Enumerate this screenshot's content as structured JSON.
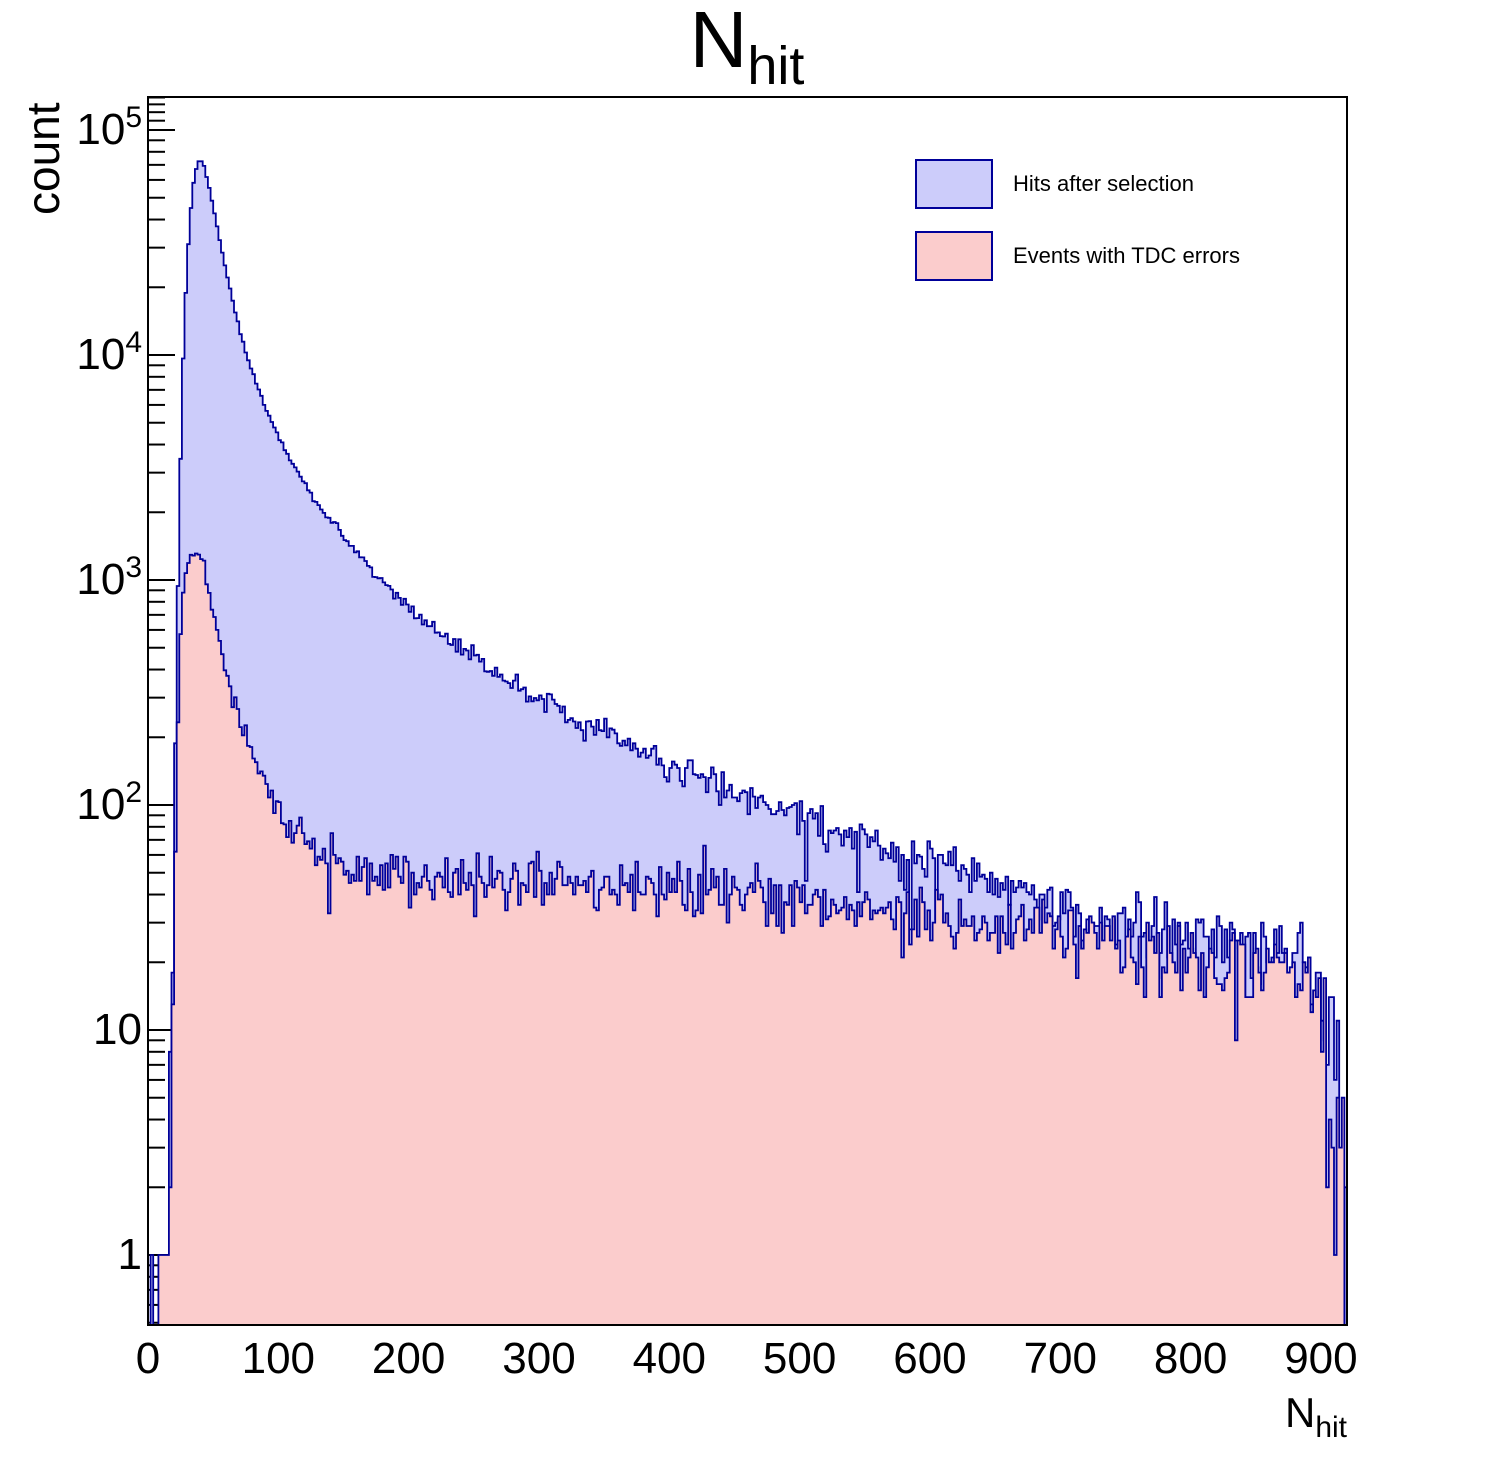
{
  "title": {
    "main": "N",
    "sub": "hit"
  },
  "axes": {
    "x": {
      "label_main": "N",
      "label_sub": "hit",
      "min": 0,
      "max": 920,
      "tick_values": [
        0,
        100,
        200,
        300,
        400,
        500,
        600,
        700,
        800,
        900
      ],
      "tick_labels": [
        "0",
        "100",
        "200",
        "300",
        "400",
        "500",
        "600",
        "700",
        "800",
        "900"
      ],
      "minor_step": 20
    },
    "y": {
      "label": "count",
      "scale": "log",
      "min": 0.5,
      "max": 140000,
      "ticks": [
        {
          "value": 100000,
          "base": "10",
          "exp": "5"
        },
        {
          "value": 10000,
          "base": "10",
          "exp": "4"
        },
        {
          "value": 1000,
          "base": "10",
          "exp": "3"
        },
        {
          "value": 100,
          "base": "10",
          "exp": "2"
        },
        {
          "value": 10,
          "base": "10",
          "exp": ""
        },
        {
          "value": 1,
          "base": "1",
          "exp": ""
        }
      ]
    }
  },
  "legend": {
    "position": "top-right",
    "items": [
      {
        "label": "Hits after selection",
        "fill": "#ccccfa",
        "line": "#000099"
      },
      {
        "label": "Events with TDC errors",
        "fill": "#fbcccc",
        "line": "#000099"
      }
    ]
  },
  "colors": {
    "background": "#ffffff",
    "frame": "#000000",
    "hist_line": "#000099",
    "blue_fill": "#ccccfa",
    "pink_fill": "#fbcccc"
  },
  "chart_data": {
    "type": "bar",
    "subtype": "step-histogram-log-y",
    "title": "N_hit",
    "xlabel": "N_hit",
    "ylabel": "count",
    "xlim": [
      0,
      920
    ],
    "ylim": [
      0.5,
      140000
    ],
    "bin_width": 2,
    "grid": false,
    "legend_position": "top-right",
    "noise_seed": 20240917,
    "series": [
      {
        "name": "Hits after selection",
        "peak": {
          "x": 40,
          "count": 73000
        },
        "anchors": [
          [
            14,
            0.8
          ],
          [
            15.5,
            2
          ],
          [
            17,
            6
          ],
          [
            19,
            30
          ],
          [
            21,
            180
          ],
          [
            23,
            900
          ],
          [
            25,
            3500
          ],
          [
            27,
            9500
          ],
          [
            29,
            19000
          ],
          [
            31,
            31000
          ],
          [
            33,
            45000
          ],
          [
            35,
            58000
          ],
          [
            37,
            67000
          ],
          [
            39,
            72500
          ],
          [
            41,
            73000
          ],
          [
            43,
            69000
          ],
          [
            45,
            62000
          ],
          [
            48,
            52000
          ],
          [
            51,
            42500
          ],
          [
            55,
            32500
          ],
          [
            60,
            23500
          ],
          [
            65,
            17500
          ],
          [
            70,
            13200
          ],
          [
            76,
            9900
          ],
          [
            82,
            7800
          ],
          [
            88,
            6300
          ],
          [
            95,
            5000
          ],
          [
            102,
            4100
          ],
          [
            110,
            3350
          ],
          [
            120,
            2700
          ],
          [
            130,
            2200
          ],
          [
            140,
            1850
          ],
          [
            152,
            1500
          ],
          [
            164,
            1250
          ],
          [
            176,
            1050
          ],
          [
            190,
            870
          ],
          [
            205,
            720
          ],
          [
            220,
            610
          ],
          [
            235,
            520
          ],
          [
            250,
            455
          ],
          [
            265,
            400
          ],
          [
            280,
            352
          ],
          [
            300,
            300
          ],
          [
            320,
            258
          ],
          [
            340,
            223
          ],
          [
            360,
            194
          ],
          [
            380,
            170
          ],
          [
            400,
            150
          ],
          [
            425,
            131
          ],
          [
            450,
            115
          ],
          [
            475,
            101
          ],
          [
            500,
            90
          ],
          [
            525,
            80
          ],
          [
            550,
            71
          ],
          [
            575,
            63
          ],
          [
            600,
            56
          ],
          [
            625,
            50
          ],
          [
            650,
            45
          ],
          [
            675,
            41
          ],
          [
            700,
            37
          ],
          [
            725,
            34
          ],
          [
            750,
            31
          ],
          [
            775,
            28
          ],
          [
            800,
            26
          ],
          [
            825,
            24
          ],
          [
            850,
            23
          ],
          [
            870,
            22
          ],
          [
            885,
            20
          ],
          [
            895,
            17
          ],
          [
            903,
            11
          ],
          [
            909,
            6
          ],
          [
            914,
            3
          ],
          [
            917,
            1.5
          ],
          [
            919,
            0.7
          ]
        ],
        "spikes": [
          [
            2,
            1
          ]
        ]
      },
      {
        "name": "Events with TDC errors",
        "peak": {
          "x": 40,
          "count": 1270
        },
        "anchors": [
          [
            15,
            0.8
          ],
          [
            16.5,
            2
          ],
          [
            18,
            7
          ],
          [
            20,
            30
          ],
          [
            22,
            130
          ],
          [
            24,
            430
          ],
          [
            26,
            760
          ],
          [
            28,
            990
          ],
          [
            30,
            1130
          ],
          [
            33,
            1230
          ],
          [
            36,
            1265
          ],
          [
            39,
            1270
          ],
          [
            41,
            1245
          ],
          [
            43,
            1170
          ],
          [
            45,
            1040
          ],
          [
            48,
            840
          ],
          [
            51,
            670
          ],
          [
            55,
            510
          ],
          [
            60,
            385
          ],
          [
            65,
            300
          ],
          [
            70,
            240
          ],
          [
            76,
            190
          ],
          [
            82,
            155
          ],
          [
            88,
            128
          ],
          [
            95,
            106
          ],
          [
            102,
            91
          ],
          [
            110,
            80
          ],
          [
            120,
            70
          ],
          [
            130,
            63
          ],
          [
            140,
            58
          ],
          [
            152,
            54
          ],
          [
            164,
            51
          ],
          [
            176,
            49
          ],
          [
            190,
            48
          ],
          [
            205,
            47
          ],
          [
            220,
            46
          ],
          [
            235,
            46
          ],
          [
            250,
            45
          ],
          [
            265,
            45
          ],
          [
            280,
            45
          ],
          [
            300,
            46
          ],
          [
            320,
            45
          ],
          [
            340,
            45
          ],
          [
            360,
            44
          ],
          [
            380,
            44
          ],
          [
            400,
            43
          ],
          [
            425,
            42
          ],
          [
            450,
            41
          ],
          [
            475,
            40
          ],
          [
            500,
            39
          ],
          [
            525,
            37
          ],
          [
            550,
            36
          ],
          [
            575,
            34
          ],
          [
            600,
            33
          ],
          [
            625,
            31
          ],
          [
            650,
            30
          ],
          [
            675,
            29
          ],
          [
            700,
            28
          ],
          [
            725,
            26
          ],
          [
            750,
            25
          ],
          [
            775,
            23
          ],
          [
            800,
            22
          ],
          [
            825,
            21
          ],
          [
            850,
            20
          ],
          [
            870,
            19
          ],
          [
            885,
            17
          ],
          [
            895,
            14
          ],
          [
            903,
            9
          ],
          [
            909,
            5
          ],
          [
            914,
            2.5
          ],
          [
            917,
            1.2
          ],
          [
            919,
            0.6
          ]
        ],
        "spikes": [
          [
            8,
            1
          ],
          [
            10,
            1
          ],
          [
            12,
            1
          ]
        ]
      }
    ]
  }
}
